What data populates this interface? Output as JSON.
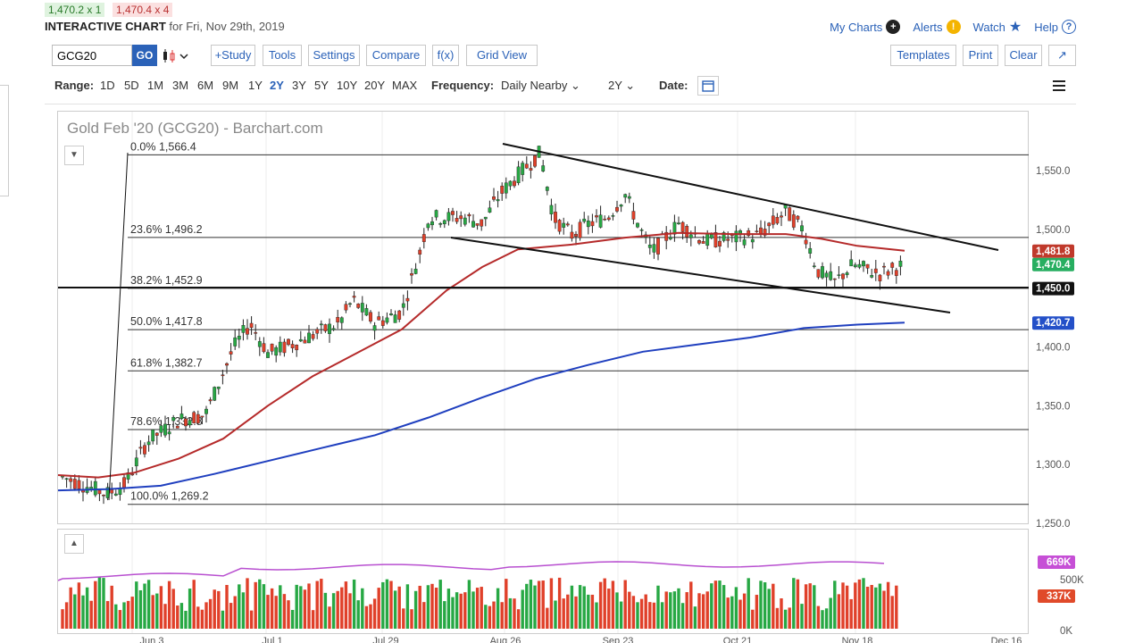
{
  "quote": {
    "bid": "1,470.2 x 1",
    "ask": "1,470.4 x 4"
  },
  "header": {
    "title": "INTERACTIVE CHART",
    "subtitle": "for Fri, Nov 29th, 2019"
  },
  "topnav": {
    "my_charts": "My Charts",
    "alerts": "Alerts",
    "watch": "Watch",
    "help": "Help"
  },
  "toolbar": {
    "symbol": "GCG20",
    "go": "GO",
    "study": "+Study",
    "tools": "Tools",
    "settings": "Settings",
    "compare": "Compare",
    "fx": "f(x)",
    "grid_view": "Grid View",
    "templates": "Templates",
    "print": "Print",
    "clear": "Clear"
  },
  "range": {
    "label": "Range:",
    "options": [
      "1D",
      "5D",
      "1M",
      "3M",
      "6M",
      "9M",
      "1Y",
      "2Y",
      "3Y",
      "5Y",
      "10Y",
      "20Y",
      "MAX"
    ],
    "selected": "2Y",
    "frequency_label": "Frequency:",
    "frequency_value": "Daily Nearby",
    "period_value": "2Y",
    "date_label": "Date:"
  },
  "chart_data": {
    "type": "candlestick",
    "title": "Gold Feb '20 (GCG20) - Barchart.com",
    "y_range": [
      1230,
      1590
    ],
    "y_ticks": [
      "1,550.0",
      "1,500.0",
      "1,450.0",
      "1,400.0",
      "1,350.0",
      "1,300.0",
      "1,250.0"
    ],
    "x_ticks": [
      "Jun 3",
      "Jul 1",
      "Jul 29",
      "Aug 26",
      "Sep 23",
      "Oct 21",
      "Nov 18",
      "Dec 16"
    ],
    "fib_levels": [
      {
        "label": "0.0% 1,566.4",
        "value": 1566.4
      },
      {
        "label": "23.6% 1,496.2",
        "value": 1496.2
      },
      {
        "label": "38.2% 1,452.9",
        "value": 1452.9
      },
      {
        "label": "50.0% 1,417.8",
        "value": 1417.8
      },
      {
        "label": "61.8% 1,382.7",
        "value": 1382.7
      },
      {
        "label": "78.6% 1,332.8",
        "value": 1332.8
      },
      {
        "label": "100.0% 1,269.2",
        "value": 1269.2
      }
    ],
    "price_tags": [
      {
        "label": "1,481.8",
        "value": 1481.8,
        "color": "#c0392b"
      },
      {
        "label": "1,470.4",
        "value": 1470.4,
        "color": "#27ae60"
      },
      {
        "label": "1,450.0",
        "value": 1450.0,
        "color": "#111111"
      },
      {
        "label": "1,420.7",
        "value": 1420.7,
        "color": "#2450c8"
      }
    ],
    "ma_short_color": "#b52a2a",
    "ma_long_color": "#1f3fbf",
    "up_color": "#27a844",
    "down_color": "#e0402a"
  },
  "volume": {
    "ticks": [
      "500K",
      "0K"
    ],
    "tags": [
      {
        "label": "669K",
        "color": "#c64fd6"
      },
      {
        "label": "337K",
        "color": "#e04a2a"
      }
    ]
  }
}
